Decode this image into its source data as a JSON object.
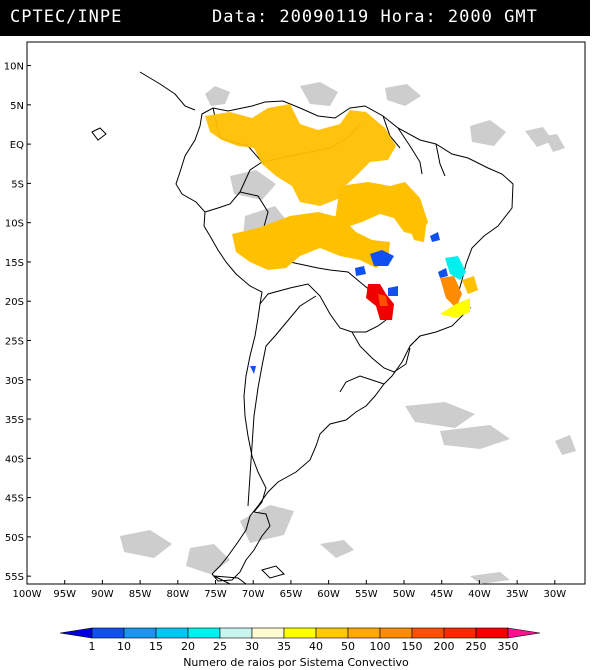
{
  "header": {
    "source": "CPTEC/INPE",
    "datetime": "Data: 20090119 Hora: 2000 GMT"
  },
  "map": {
    "lon_range": [
      -100,
      -26
    ],
    "lat_range": [
      -56,
      13
    ],
    "lat_ticks": [
      "10N",
      "5N",
      "EQ",
      "5S",
      "10S",
      "15S",
      "20S",
      "25S",
      "30S",
      "35S",
      "40S",
      "45S",
      "50S",
      "55S"
    ],
    "lat_values": [
      10,
      5,
      0,
      -5,
      -10,
      -15,
      -20,
      -25,
      -30,
      -35,
      -40,
      -45,
      -50,
      -55
    ],
    "lon_ticks": [
      "100W",
      "95W",
      "90W",
      "85W",
      "80W",
      "75W",
      "70W",
      "65W",
      "60W",
      "55W",
      "50W",
      "45W",
      "40W",
      "35W",
      "30W"
    ],
    "lon_values": [
      -100,
      -95,
      -90,
      -85,
      -80,
      -75,
      -70,
      -65,
      -60,
      -55,
      -50,
      -45,
      -40,
      -35,
      -30
    ],
    "cloud_color": "#c8c8c8",
    "coast_color": "#000000"
  },
  "legend": {
    "labels": [
      "1",
      "10",
      "15",
      "20",
      "25",
      "30",
      "35",
      "40",
      "50",
      "100",
      "150",
      "200",
      "250",
      "350"
    ],
    "colors": [
      "#0000e0",
      "#1050f0",
      "#1896f0",
      "#00c8f0",
      "#00f0f0",
      "#c8f5f0",
      "#fffad2",
      "#ffff00",
      "#ffc800",
      "#ffa800",
      "#ff8c00",
      "#ff5000",
      "#ff2800",
      "#f00000",
      "#ff1090"
    ],
    "title": "Numero de raios por Sistema Convectivo"
  }
}
